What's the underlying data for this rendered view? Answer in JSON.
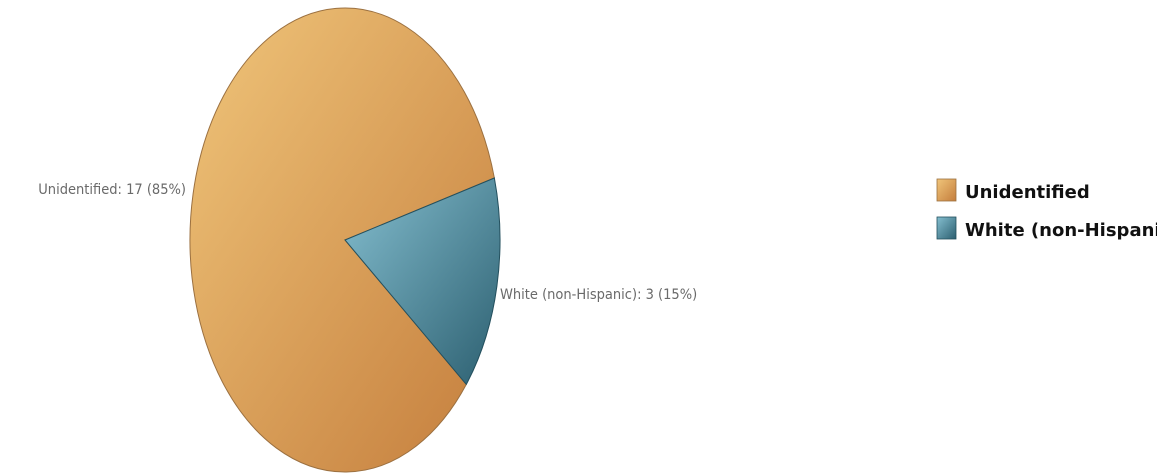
{
  "chart_data": {
    "type": "pie",
    "title": "",
    "legend_position": "right",
    "slices": [
      {
        "category": "Unidentified",
        "value": 17,
        "percent": 85,
        "label": "Unidentified: 17 (85%)",
        "color": "#e1a463",
        "color_light": "#f0c57a",
        "color_dark": "#c47d3c"
      },
      {
        "category": "White (non-Hispanic)",
        "value": 3,
        "percent": 15,
        "label": "White (non-Hispanic): 3 (15%)",
        "color": "#4f8a9a",
        "color_light": "#85bfd0",
        "color_dark": "#2c5f70"
      }
    ],
    "legend": [
      {
        "label": "Unidentified",
        "color": "#e1a463"
      },
      {
        "label": "White (non-Hispanic)",
        "color": "#4f8a9a"
      }
    ]
  }
}
